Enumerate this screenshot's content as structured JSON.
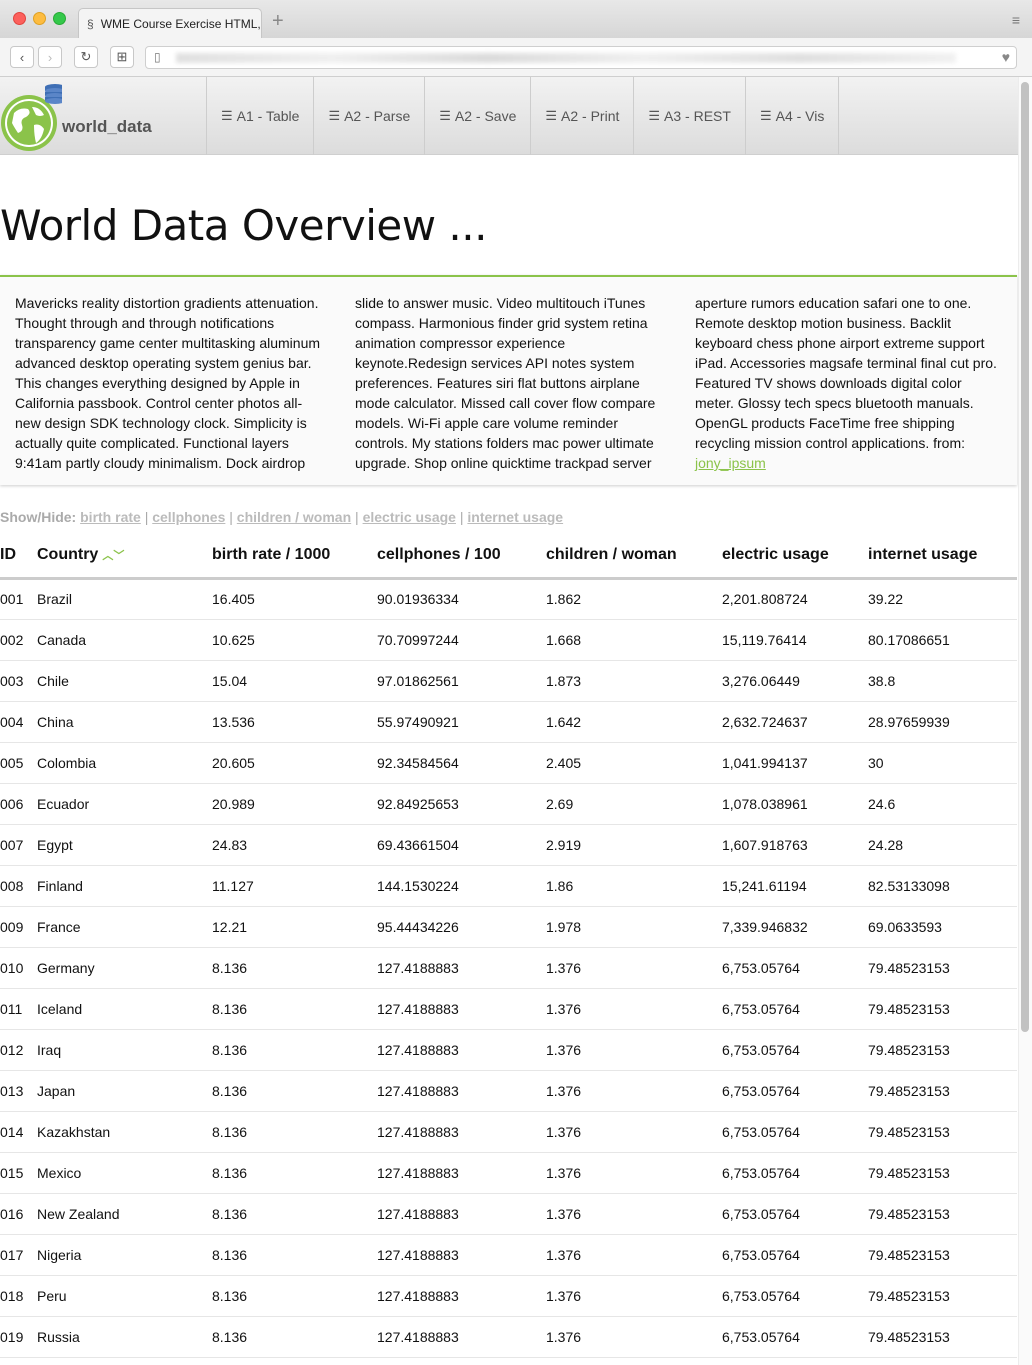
{
  "browser": {
    "tab_title": "WME Course Exercise HTML, C",
    "new_tab_symbol": "+",
    "back_symbol": "‹",
    "forward_symbol": "›",
    "reload_symbol": "↻",
    "grid_symbol": "⊞",
    "page_symbol": "▯",
    "heart_symbol": "♥",
    "menu_symbol": "≡"
  },
  "site": {
    "brand": "world_data",
    "nav": [
      {
        "label": "A1 - Table"
      },
      {
        "label": "A2 - Parse"
      },
      {
        "label": "A2 - Save"
      },
      {
        "label": "A2 - Print"
      },
      {
        "label": "A3 - REST"
      },
      {
        "label": "A4 - Vis"
      }
    ],
    "nav_icon": "☰"
  },
  "page": {
    "title": "World Data Overview ...",
    "lorem_text": "Mavericks reality distortion gradients attenuation. Thought through and through notifications transparency game center multitasking aluminum advanced desktop operating system genius bar. This changes everything designed by Apple in California passbook. Control center photos all-new design SDK technology clock. Simplicity is actually quite complicated. Functional layers 9:41am partly cloudy minimalism. Dock airdrop slide to answer music. Video multitouch iTunes compass. Harmonious finder grid system retina animation compressor experience keynote.Redesign services API notes system preferences. Features siri flat buttons airplane mode calculator. Missed call cover flow compare models. Wi-Fi apple care volume reminder controls. My stations folders mac power ultimate upgrade. Shop online quicktime trackpad server aperture rumors education safari one to one. Remote desktop motion business. Backlit keyboard chess phone airport extreme support iPad. Accessories magsafe terminal final cut pro. Featured TV shows downloads digital color meter. Glossy tech specs bluetooth manuals. OpenGL products FaceTime free shipping recycling mission control applications. from: ",
    "lorem_link": "jony_ipsum",
    "showhide_label": "Show/Hide:",
    "showhide_links": [
      "birth rate",
      "cellphones",
      "children / woman",
      "electric usage",
      "internet usage"
    ],
    "showhide_separator": "|"
  },
  "table": {
    "headers": [
      "ID",
      "Country",
      "birth rate / 1000",
      "cellphones / 100",
      "children / woman",
      "electric usage",
      "internet usage"
    ],
    "sort_up": "^",
    "sort_down": "v",
    "rows": [
      [
        "001",
        "Brazil",
        "16.405",
        "90.01936334",
        "1.862",
        "2,201.808724",
        "39.22"
      ],
      [
        "002",
        "Canada",
        "10.625",
        "70.70997244",
        "1.668",
        "15,119.76414",
        "80.17086651"
      ],
      [
        "003",
        "Chile",
        "15.04",
        "97.01862561",
        "1.873",
        "3,276.06449",
        "38.8"
      ],
      [
        "004",
        "China",
        "13.536",
        "55.97490921",
        "1.642",
        "2,632.724637",
        "28.97659939"
      ],
      [
        "005",
        "Colombia",
        "20.605",
        "92.34584564",
        "2.405",
        "1,041.994137",
        "30"
      ],
      [
        "006",
        "Ecuador",
        "20.989",
        "92.84925653",
        "2.69",
        "1,078.038961",
        "24.6"
      ],
      [
        "007",
        "Egypt",
        "24.83",
        "69.43661504",
        "2.919",
        "1,607.918763",
        "24.28"
      ],
      [
        "008",
        "Finland",
        "11.127",
        "144.1530224",
        "1.86",
        "15,241.61194",
        "82.53133098"
      ],
      [
        "009",
        "France",
        "12.21",
        "95.44434226",
        "1.978",
        "7,339.946832",
        "69.0633593"
      ],
      [
        "010",
        "Germany",
        "8.136",
        "127.4188883",
        "1.376",
        "6,753.05764",
        "79.48523153"
      ],
      [
        "011",
        "Iceland",
        "8.136",
        "127.4188883",
        "1.376",
        "6,753.05764",
        "79.48523153"
      ],
      [
        "012",
        "Iraq",
        "8.136",
        "127.4188883",
        "1.376",
        "6,753.05764",
        "79.48523153"
      ],
      [
        "013",
        "Japan",
        "8.136",
        "127.4188883",
        "1.376",
        "6,753.05764",
        "79.48523153"
      ],
      [
        "014",
        "Kazakhstan",
        "8.136",
        "127.4188883",
        "1.376",
        "6,753.05764",
        "79.48523153"
      ],
      [
        "015",
        "Mexico",
        "8.136",
        "127.4188883",
        "1.376",
        "6,753.05764",
        "79.48523153"
      ],
      [
        "016",
        "New Zealand",
        "8.136",
        "127.4188883",
        "1.376",
        "6,753.05764",
        "79.48523153"
      ],
      [
        "017",
        "Nigeria",
        "8.136",
        "127.4188883",
        "1.376",
        "6,753.05764",
        "79.48523153"
      ],
      [
        "018",
        "Peru",
        "8.136",
        "127.4188883",
        "1.376",
        "6,753.05764",
        "79.48523153"
      ],
      [
        "019",
        "Russia",
        "8.136",
        "127.4188883",
        "1.376",
        "6,753.05764",
        "79.48523153"
      ]
    ]
  },
  "colors": {
    "accent": "#8bc34a",
    "link_muted": "#bbbbbb"
  }
}
